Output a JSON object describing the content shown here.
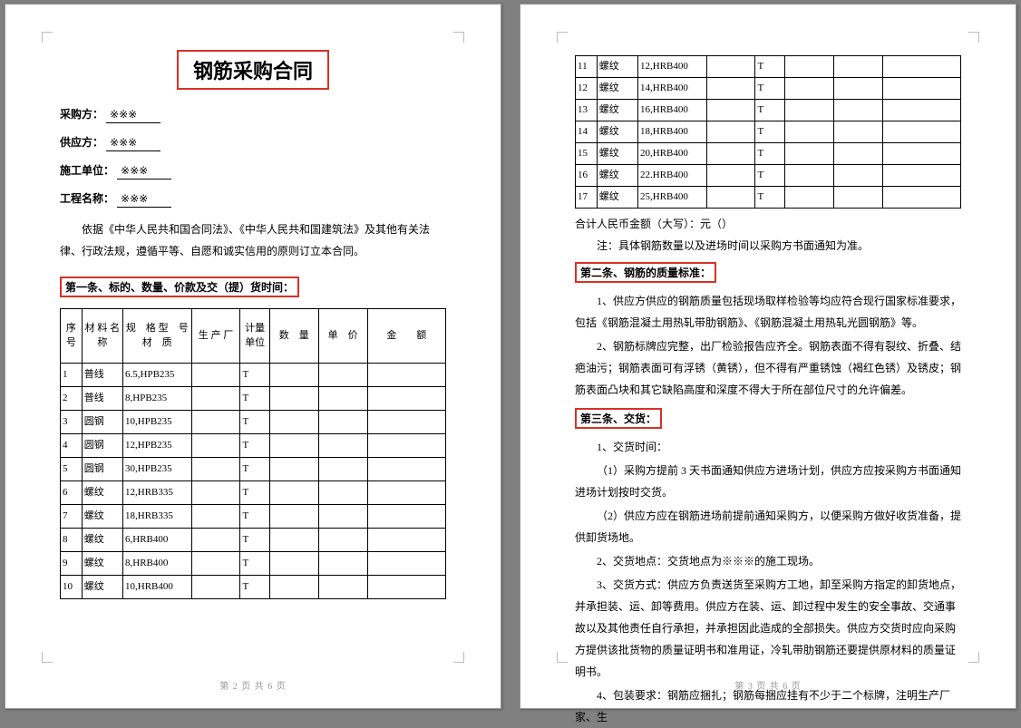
{
  "title": "钢筋采购合同",
  "fields": {
    "buyer_label": "采购方：",
    "buyer_value": "※※※",
    "supplier_label": "供应方：",
    "supplier_value": "※※※",
    "contractor_label": "施工单位：",
    "contractor_value": "※※※",
    "project_label": "工程名称：",
    "project_value": "※※※"
  },
  "intro": "依据《中华人民共和国合同法》、《中华人民共和国建筑法》及其他有关法律、行政法规，遵循平等、自愿和诚实信用的原则订立本合同。",
  "section1_heading": "第一条、标的、数量、价款及交（提）货时间：",
  "table": {
    "headers": {
      "seq": "序号",
      "name": "材 料 名 称",
      "spec": "规　格 型　号 材　质",
      "factory": "生 产 厂",
      "unit": "计量单位",
      "qty": "数　量",
      "price": "单　价",
      "amount": "金　　额"
    },
    "rows_p1": [
      {
        "seq": "1",
        "name": "普线",
        "spec": "6.5,HPB235",
        "unit": "T"
      },
      {
        "seq": "2",
        "name": "普线",
        "spec": "8,HPB235",
        "unit": "T"
      },
      {
        "seq": "3",
        "name": "圆钢",
        "spec": "10,HPB235",
        "unit": "T"
      },
      {
        "seq": "4",
        "name": "圆钢",
        "spec": "12,HPB235",
        "unit": "T"
      },
      {
        "seq": "5",
        "name": "圆钢",
        "spec": "30,HPB235",
        "unit": "T"
      },
      {
        "seq": "6",
        "name": "螺纹",
        "spec": "12,HRB335",
        "unit": "T"
      },
      {
        "seq": "7",
        "name": "螺纹",
        "spec": "18,HRB335",
        "unit": "T"
      },
      {
        "seq": "8",
        "name": "螺纹",
        "spec": "6,HRB400",
        "unit": "T"
      },
      {
        "seq": "9",
        "name": "螺纹",
        "spec": "8,HRB400",
        "unit": "T"
      },
      {
        "seq": "10",
        "name": "螺纹",
        "spec": "10,HRB400",
        "unit": "T"
      }
    ],
    "rows_p2": [
      {
        "seq": "11",
        "name": "螺纹",
        "spec": "12,HRB400",
        "unit": "T"
      },
      {
        "seq": "12",
        "name": "螺纹",
        "spec": "14,HRB400",
        "unit": "T"
      },
      {
        "seq": "13",
        "name": "螺纹",
        "spec": "16,HRB400",
        "unit": "T"
      },
      {
        "seq": "14",
        "name": "螺纹",
        "spec": "18,HRB400",
        "unit": "T"
      },
      {
        "seq": "15",
        "name": "螺纹",
        "spec": "20,HRB400",
        "unit": "T"
      },
      {
        "seq": "16",
        "name": "螺纹",
        "spec": "22.HRB400",
        "unit": "T"
      },
      {
        "seq": "17",
        "name": "螺纹",
        "spec": "25,HRB400",
        "unit": "T"
      }
    ]
  },
  "sum_line": "合计人民币金额（大写）：元（）",
  "note_line": "注：具体钢筋数量以及进场时间以采购方书面通知为准。",
  "section2_heading": "第二条、钢筋的质量标准：",
  "section2_p1": "1、供应方供应的钢筋质量包括现场取样检验等均应符合现行国家标准要求，包括《钢筋混凝土用热轧带肋钢筋》、《钢筋混凝土用热轧光圆钢筋》等。",
  "section2_p2": "2、钢筋标牌应完整，出厂检验报告应齐全。钢筋表面不得有裂纹、折叠、结疤油污；钢筋表面可有浮锈（黄锈），但不得有严重锈蚀（褐红色锈）及锈皮；钢筋表面凸块和其它缺陷高度和深度不得大于所在部位尺寸的允许偏差。",
  "section3_heading": "第三条、交货：",
  "section3_p1": "1、交货时间：",
  "section3_p1a": "（1）采购方提前 3 天书面通知供应方进场计划，供应方应按采购方书面通知进场计划按时交货。",
  "section3_p1b": "（2）供应方应在钢筋进场前提前通知采购方，以便采购方做好收货准备，提供卸货场地。",
  "section3_p2": "2、交货地点：交货地点为※※※的施工现场。",
  "section3_p3": "3、交货方式：供应方负责送货至采购方工地，卸至采购方指定的卸货地点，并承担装、运、卸等费用。供应方在装、运、卸过程中发生的安全事故、交通事故以及其他责任自行承担，并承担因此造成的全部损失。供应方交货时应向采购方提供该批货物的质量证明书和准用证，冷轧带肋钢筋还要提供原材料的质量证明书。",
  "section3_p4": "4、包装要求：钢筋应捆扎；钢筋每捆应挂有不少于二个标牌，注明生产厂家、生",
  "page_numbers": {
    "p1": "第 2 页 共 6 页",
    "p2": "第 3 页 共 6 页"
  },
  "colors": {
    "highlight_border": "#d93025",
    "text": "#000000",
    "page_bg": "#ffffff",
    "body_bg": "#808080"
  }
}
